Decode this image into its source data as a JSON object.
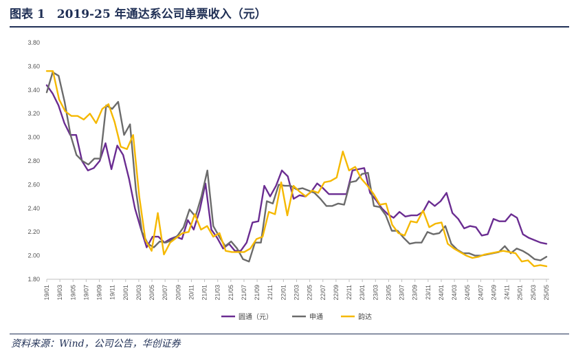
{
  "header": {
    "title": "图表 1　2019-25 年通达系公司单票收入（元）"
  },
  "footer": {
    "source": "资料来源：Wind，公司公告，华创证券"
  },
  "chart_data": {
    "type": "line",
    "title": "",
    "xlabel": "",
    "ylabel": "",
    "ylim": [
      1.8,
      3.8
    ],
    "yticks": [
      "3.80",
      "3.60",
      "3.40",
      "3.20",
      "3.00",
      "2.80",
      "2.60",
      "2.40",
      "2.20",
      "2.00",
      "1.80"
    ],
    "grid": false,
    "legend_position": "bottom",
    "x_ticks": [
      "19/01",
      "19/03",
      "19/05",
      "19/07",
      "19/09",
      "19/11",
      "20/01",
      "20/03",
      "20/05",
      "20/07",
      "20/09",
      "20/11",
      "21/01",
      "21/03",
      "21/05",
      "21/07",
      "21/09",
      "21/11",
      "22/01",
      "22/03",
      "22/05",
      "22/07",
      "22/09",
      "22/11",
      "23/01",
      "23/03",
      "23/05",
      "23/07",
      "23/09",
      "23/11",
      "24/01",
      "24/03",
      "24/05",
      "24/07",
      "24/09",
      "24/11",
      "25/01",
      "25/03",
      "25/05"
    ],
    "series": [
      {
        "name": "圆通（元）",
        "color": "#6a2c91",
        "values": [
          3.44,
          3.37,
          3.27,
          3.12,
          3.02,
          3.02,
          2.8,
          2.72,
          2.74,
          2.8,
          2.95,
          2.73,
          2.93,
          2.85,
          2.65,
          2.4,
          2.23,
          2.07,
          2.16,
          2.16,
          2.11,
          2.14,
          2.16,
          2.14,
          2.3,
          2.22,
          2.38,
          2.61,
          2.22,
          2.15,
          2.06,
          2.1,
          2.04,
          2.04,
          2.11,
          2.28,
          2.29,
          2.59,
          2.5,
          2.59,
          2.72,
          2.67,
          2.48,
          2.51,
          2.5,
          2.54,
          2.61,
          2.57,
          2.52,
          2.52,
          2.52,
          2.52,
          2.72,
          2.73,
          2.74,
          2.53,
          2.47,
          2.4,
          2.35,
          2.32,
          2.37,
          2.33,
          2.34,
          2.34,
          2.37,
          2.46,
          2.42,
          2.46,
          2.53,
          2.36,
          2.31,
          2.23,
          2.25,
          2.24,
          2.17,
          2.18,
          2.31,
          2.29,
          2.29,
          2.35,
          2.32,
          2.18,
          2.15,
          2.13,
          2.11,
          2.1
        ]
      },
      {
        "name": "申通",
        "color": "#6b6b6b",
        "values": [
          3.38,
          3.55,
          3.52,
          3.3,
          3.02,
          2.85,
          2.8,
          2.77,
          2.82,
          2.82,
          3.27,
          3.24,
          3.3,
          3.02,
          3.11,
          2.55,
          2.2,
          2.1,
          2.07,
          2.12,
          2.11,
          2.13,
          2.17,
          2.24,
          2.39,
          2.33,
          2.5,
          2.72,
          2.25,
          2.16,
          2.08,
          2.12,
          2.06,
          1.97,
          1.95,
          2.11,
          2.11,
          2.46,
          2.44,
          2.6,
          2.59,
          2.59,
          2.56,
          2.57,
          2.55,
          2.53,
          2.48,
          2.42,
          2.42,
          2.44,
          2.43,
          2.62,
          2.63,
          2.69,
          2.7,
          2.42,
          2.41,
          2.34,
          2.21,
          2.21,
          2.15,
          2.1,
          2.11,
          2.11,
          2.2,
          2.18,
          2.19,
          2.25,
          2.1,
          2.05,
          2.02,
          2.02,
          2.0,
          2.0,
          2.01,
          2.02,
          2.03,
          2.08,
          2.02,
          2.06,
          2.04,
          2.01,
          1.97,
          1.96,
          1.99
        ]
      },
      {
        "name": "韵达",
        "color": "#f5b800",
        "values": [
          3.56,
          3.56,
          3.32,
          3.22,
          3.18,
          3.18,
          3.15,
          3.2,
          3.12,
          3.24,
          3.28,
          3.13,
          2.92,
          2.9,
          3.02,
          2.5,
          2.13,
          2.04,
          2.36,
          2.01,
          2.11,
          2.15,
          2.19,
          2.2,
          2.35,
          2.22,
          2.25,
          2.16,
          2.19,
          2.04,
          2.03,
          2.03,
          2.03,
          2.06,
          2.14,
          2.16,
          2.37,
          2.35,
          2.62,
          2.34,
          2.59,
          2.54,
          2.5,
          2.55,
          2.53,
          2.62,
          2.63,
          2.66,
          2.88,
          2.72,
          2.75,
          2.65,
          2.59,
          2.52,
          2.43,
          2.44,
          2.26,
          2.19,
          2.17,
          2.29,
          2.28,
          2.38,
          2.24,
          2.27,
          2.28,
          2.1,
          2.06,
          2.03,
          2.0,
          1.98,
          1.99,
          2.01,
          2.02,
          2.03,
          2.04,
          2.03,
          2.02,
          1.95,
          1.96,
          1.91,
          1.92,
          1.91
        ]
      }
    ]
  }
}
